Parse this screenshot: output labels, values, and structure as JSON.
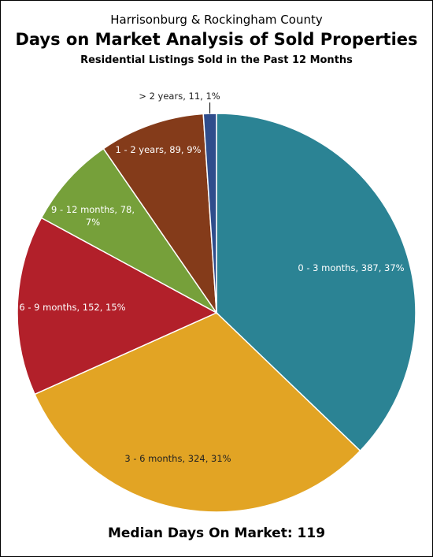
{
  "chart_data": {
    "type": "pie",
    "supertitle": "Harrisonburg & Rockingham County",
    "title": "Days on Market Analysis of Sold Properties",
    "subtitle": "Residential Listings Sold in the Past 12 Months",
    "slices": [
      {
        "label": "0 - 3 months, 387, 37%",
        "value": 387,
        "percent": 37,
        "color": "#2B8394",
        "text_color": "#ffffff"
      },
      {
        "label": "3 - 6 months, 324, 31%",
        "value": 324,
        "percent": 31,
        "color": "#E2A424",
        "text_color": "#222222"
      },
      {
        "label": "6 - 9 months, 152, 15%",
        "value": 152,
        "percent": 15,
        "color": "#B2202A",
        "text_color": "#ffffff"
      },
      {
        "label": "9 - 12 months, 78, 7%",
        "lines": [
          "9 - 12 months, 78,",
          "7%"
        ],
        "value": 78,
        "percent": 7,
        "color": "#76A03A",
        "text_color": "#ffffff"
      },
      {
        "label": "1 - 2 years, 89, 9%",
        "value": 89,
        "percent": 9,
        "color": "#843B1A",
        "text_color": "#ffffff"
      },
      {
        "label": "> 2 years, 11, 1%",
        "value": 11,
        "percent": 1,
        "color": "#2F4D8C",
        "text_color": "#222222",
        "outside": true
      }
    ],
    "start_angle": "12 o'clock",
    "direction": "clockwise",
    "legend": "none"
  },
  "footer": {
    "median_text": "Median Days On Market:  119"
  }
}
